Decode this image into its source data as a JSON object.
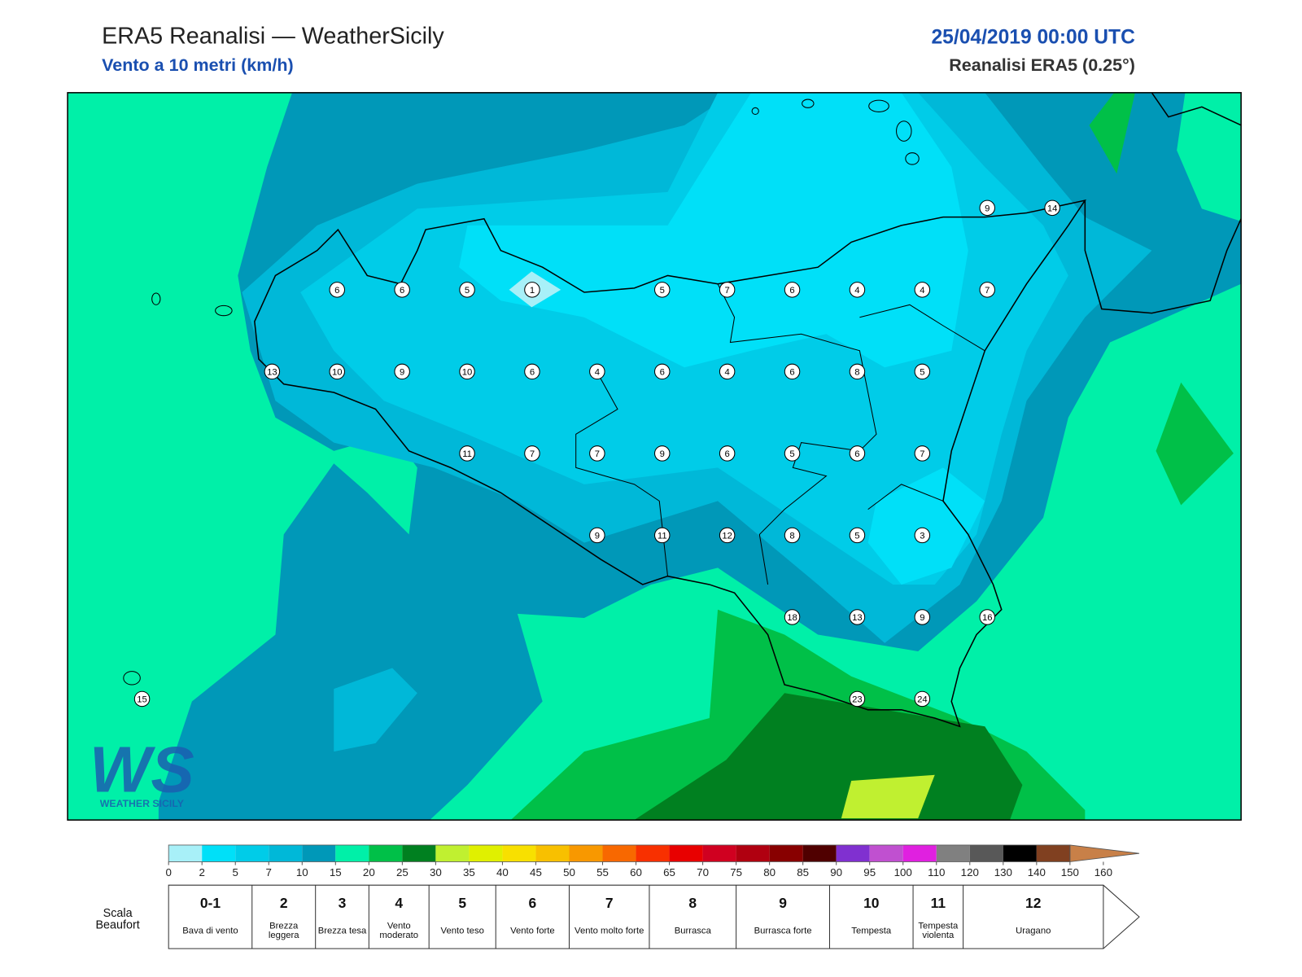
{
  "header": {
    "title": "ERA5 Reanalisi — WeatherSicily",
    "subtitle": "Vento a 10 metri (km/h)",
    "datetime": "25/04/2019 00:00 UTC",
    "source": "Reanalisi ERA5 (0.25°)"
  },
  "map": {
    "stations": [
      9,
      14,
      6,
      6,
      5,
      1,
      5,
      7,
      6,
      4,
      4,
      7,
      13,
      10,
      9,
      10,
      6,
      4,
      6,
      4,
      6,
      8,
      5,
      11,
      7,
      7,
      9,
      6,
      5,
      6,
      7,
      9,
      11,
      12,
      8,
      5,
      3,
      18,
      13,
      9,
      16,
      15,
      23,
      24
    ]
  },
  "logo": {
    "mark": "WS",
    "name": "WEATHER SICILY"
  },
  "colorbar": {
    "ticks": [
      0,
      2,
      5,
      7,
      10,
      15,
      20,
      25,
      30,
      35,
      40,
      45,
      50,
      55,
      60,
      65,
      70,
      75,
      80,
      85,
      90,
      95,
      100,
      110,
      120,
      130,
      140,
      150,
      160
    ],
    "colors": [
      "#a8f0f8",
      "#00e0f8",
      "#00cce8",
      "#00b8d8",
      "#0098b8",
      "#00f0a8",
      "#00c048",
      "#008020",
      "#c0f030",
      "#e0f000",
      "#f8e000",
      "#f8c000",
      "#f89800",
      "#f86800",
      "#f83000",
      "#e80000",
      "#d00020",
      "#b00010",
      "#880000",
      "#500000",
      "#8030d0",
      "#c050d0",
      "#e020e0",
      "#808080",
      "#585858",
      "#000000",
      "#804020",
      "#c88048"
    ]
  },
  "beaufort": {
    "label": "Scala Beaufort",
    "scale": [
      {
        "force": "0-1",
        "desc": "Bava di vento"
      },
      {
        "force": "2",
        "desc": "Brezza leggera"
      },
      {
        "force": "3",
        "desc": "Brezza tesa"
      },
      {
        "force": "4",
        "desc": "Vento moderato"
      },
      {
        "force": "5",
        "desc": "Vento teso"
      },
      {
        "force": "6",
        "desc": "Vento forte"
      },
      {
        "force": "7",
        "desc": "Vento molto forte"
      },
      {
        "force": "8",
        "desc": "Burrasca"
      },
      {
        "force": "9",
        "desc": "Burrasca forte"
      },
      {
        "force": "10",
        "desc": "Tempesta"
      },
      {
        "force": "11",
        "desc": "Tempesta violenta"
      },
      {
        "force": "12",
        "desc": "Uragano"
      }
    ]
  }
}
